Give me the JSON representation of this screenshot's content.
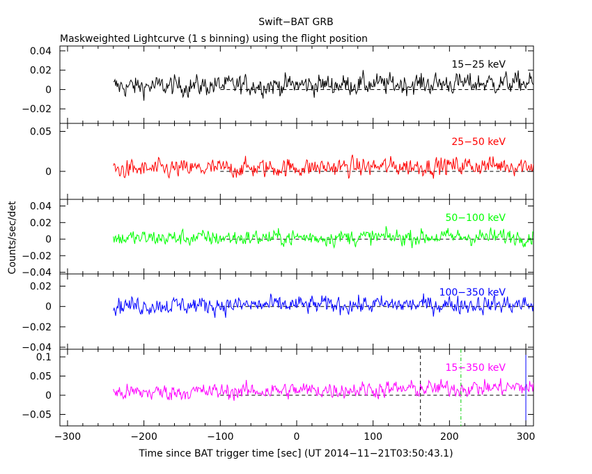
{
  "chart_data": {
    "type": "line",
    "title": "Swift−BAT GRB",
    "subtitle": "Maskweighted Lightcurve (1 s binning) using the flight position",
    "xlabel": "Time since BAT trigger time [sec] (UT 2014−11−21T03:50:43.1)",
    "ylabel": "Counts/sec/det",
    "xlim": [
      -310,
      310
    ],
    "x_ticks": [
      -300,
      -200,
      -100,
      0,
      100,
      200,
      300
    ],
    "x_tick_labels": [
      "−300",
      "−200",
      "−100",
      "0",
      "100",
      "200",
      "300"
    ],
    "data_range": [
      -240,
      310
    ],
    "bin_seconds": 1,
    "vertical_markers": [
      {
        "x": 162,
        "style": "dashed",
        "color": "#000000"
      },
      {
        "x": 215,
        "style": "dash-dot",
        "color": "#00cc00"
      },
      {
        "x": 300,
        "style": "solid",
        "color": "#0000ff"
      }
    ],
    "series": [
      {
        "name": "15−25 keV",
        "color": "#000000",
        "ylim": [
          -0.035,
          0.045
        ],
        "ticks": [
          -0.02,
          0,
          0.02,
          0.04
        ],
        "tick_labels": [
          "−0.02",
          "0",
          "0.02",
          "0.04"
        ],
        "mean": 0.003,
        "noise": 0.011,
        "trend": 0.004
      },
      {
        "name": "25−50 keV",
        "color": "#ff0000",
        "ylim": [
          -0.035,
          0.06
        ],
        "ticks": [
          0,
          0.05
        ],
        "tick_labels": [
          "0",
          "0.05"
        ],
        "mean": 0.002,
        "noise": 0.012,
        "trend": 0.006
      },
      {
        "name": "50−100 keV",
        "color": "#00ff00",
        "ylim": [
          -0.042,
          0.048
        ],
        "ticks": [
          -0.04,
          -0.02,
          0,
          0.02,
          0.04
        ],
        "tick_labels": [
          "−0.04",
          "−0.02",
          "0",
          "0.02",
          "0.04"
        ],
        "mean": 0.001,
        "noise": 0.01,
        "trend": 0.002
      },
      {
        "name": "100−350 keV",
        "color": "#0000ff",
        "ylim": [
          -0.042,
          0.032
        ],
        "ticks": [
          -0.04,
          -0.02,
          0,
          0.02
        ],
        "tick_labels": [
          "−0.04",
          "−0.02",
          "0",
          "0.02"
        ],
        "mean": 0.001,
        "noise": 0.009,
        "trend": 0.001
      },
      {
        "name": "15−350 keV",
        "color": "#ff00ff",
        "ylim": [
          -0.08,
          0.12
        ],
        "ticks": [
          -0.05,
          0,
          0.05,
          0.1
        ],
        "tick_labels": [
          "−0.05",
          "0",
          "0.05",
          "0.1"
        ],
        "mean": 0.006,
        "noise": 0.022,
        "trend": 0.015
      }
    ]
  }
}
